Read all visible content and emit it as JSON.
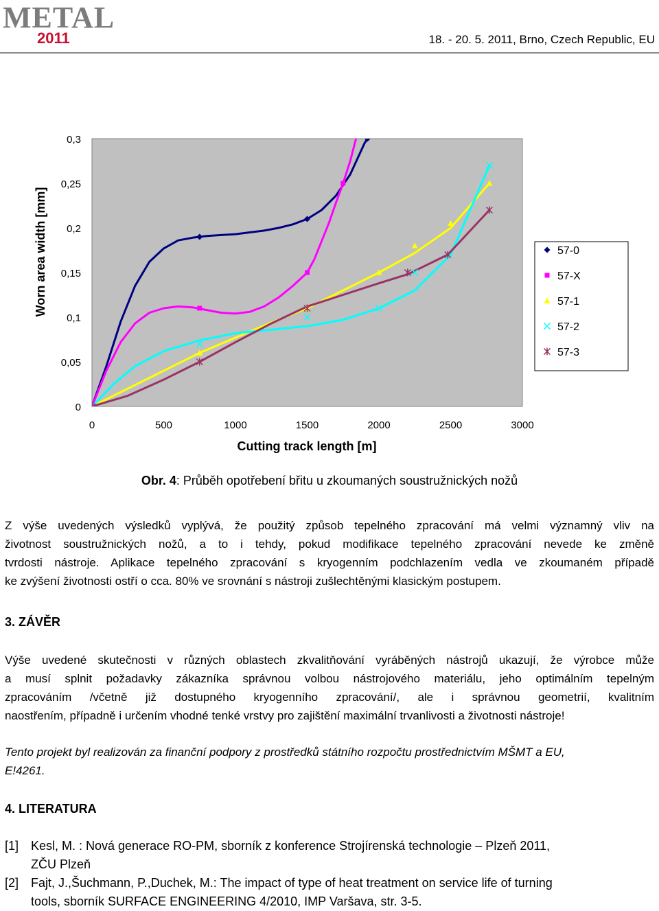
{
  "header": {
    "logo_text": "METAL",
    "logo_year": "2011",
    "date_place": "18. - 20. 5. 2011, Brno, Czech Republic, EU"
  },
  "chart_data": {
    "type": "line",
    "xlabel": "Cutting track length [m]",
    "ylabel": "Worn area width [mm]",
    "xlim": [
      0,
      3000
    ],
    "ylim": [
      0,
      0.3
    ],
    "x_ticks": [
      "0",
      "500",
      "1000",
      "1500",
      "2000",
      "2500",
      "3000"
    ],
    "y_ticks": [
      "0",
      "0,05",
      "0,1",
      "0,15",
      "0,2",
      "0,25",
      "0,3"
    ],
    "legend_position": "right",
    "plot_background": "#c0c0c0",
    "series": [
      {
        "name": "57-0",
        "color": "#000080",
        "marker": "diamond",
        "points": [
          [
            0,
            0
          ],
          [
            750,
            0.19
          ],
          [
            1500,
            0.21
          ],
          [
            1920,
            0.3
          ]
        ],
        "curve": [
          [
            0,
            0
          ],
          [
            100,
            0.045
          ],
          [
            200,
            0.095
          ],
          [
            300,
            0.135
          ],
          [
            400,
            0.162
          ],
          [
            500,
            0.177
          ],
          [
            600,
            0.186
          ],
          [
            700,
            0.189
          ],
          [
            800,
            0.191
          ],
          [
            900,
            0.192
          ],
          [
            1000,
            0.193
          ],
          [
            1100,
            0.195
          ],
          [
            1200,
            0.197
          ],
          [
            1300,
            0.2
          ],
          [
            1400,
            0.204
          ],
          [
            1500,
            0.21
          ],
          [
            1600,
            0.22
          ],
          [
            1700,
            0.236
          ],
          [
            1800,
            0.26
          ],
          [
            1900,
            0.295
          ],
          [
            1920,
            0.3
          ]
        ]
      },
      {
        "name": "57-X",
        "color": "#ff00ff",
        "marker": "square",
        "points": [
          [
            0,
            0
          ],
          [
            750,
            0.11
          ],
          [
            1500,
            0.15
          ],
          [
            1750,
            0.25
          ]
        ],
        "curve": [
          [
            0,
            0
          ],
          [
            100,
            0.04
          ],
          [
            200,
            0.072
          ],
          [
            300,
            0.093
          ],
          [
            400,
            0.105
          ],
          [
            500,
            0.11
          ],
          [
            600,
            0.112
          ],
          [
            700,
            0.111
          ],
          [
            800,
            0.108
          ],
          [
            900,
            0.105
          ],
          [
            1000,
            0.104
          ],
          [
            1100,
            0.106
          ],
          [
            1200,
            0.112
          ],
          [
            1300,
            0.122
          ],
          [
            1400,
            0.135
          ],
          [
            1500,
            0.15
          ],
          [
            1550,
            0.165
          ],
          [
            1600,
            0.185
          ],
          [
            1650,
            0.205
          ],
          [
            1700,
            0.228
          ],
          [
            1750,
            0.25
          ],
          [
            1800,
            0.275
          ],
          [
            1840,
            0.3
          ]
        ]
      },
      {
        "name": "57-1",
        "color": "#ffff00",
        "marker": "triangle",
        "points": [
          [
            0,
            0
          ],
          [
            750,
            0.06
          ],
          [
            1500,
            0.11
          ],
          [
            2000,
            0.15
          ],
          [
            2250,
            0.18
          ],
          [
            2500,
            0.205
          ],
          [
            2770,
            0.25
          ]
        ],
        "curve": [
          [
            0,
            0
          ],
          [
            250,
            0.02
          ],
          [
            500,
            0.04
          ],
          [
            750,
            0.06
          ],
          [
            1000,
            0.077
          ],
          [
            1250,
            0.094
          ],
          [
            1500,
            0.11
          ],
          [
            1750,
            0.13
          ],
          [
            2000,
            0.15
          ],
          [
            2250,
            0.172
          ],
          [
            2500,
            0.2
          ],
          [
            2770,
            0.25
          ]
        ]
      },
      {
        "name": "57-2",
        "color": "#00ffff",
        "marker": "x",
        "points": [
          [
            0,
            0
          ],
          [
            750,
            0.07
          ],
          [
            1500,
            0.1
          ],
          [
            2000,
            0.11
          ],
          [
            2250,
            0.15
          ],
          [
            2770,
            0.27
          ]
        ],
        "curve": [
          [
            0,
            0
          ],
          [
            150,
            0.025
          ],
          [
            300,
            0.045
          ],
          [
            500,
            0.062
          ],
          [
            750,
            0.074
          ],
          [
            1000,
            0.082
          ],
          [
            1250,
            0.086
          ],
          [
            1500,
            0.09
          ],
          [
            1750,
            0.097
          ],
          [
            2000,
            0.11
          ],
          [
            2250,
            0.13
          ],
          [
            2500,
            0.17
          ],
          [
            2770,
            0.27
          ]
        ]
      },
      {
        "name": "57-3",
        "color": "#993366",
        "marker": "star",
        "points": [
          [
            0,
            0
          ],
          [
            750,
            0.05
          ],
          [
            1500,
            0.11
          ],
          [
            2200,
            0.15
          ],
          [
            2480,
            0.17
          ],
          [
            2770,
            0.22
          ]
        ],
        "curve": [
          [
            0,
            0
          ],
          [
            250,
            0.012
          ],
          [
            500,
            0.03
          ],
          [
            750,
            0.05
          ],
          [
            1000,
            0.072
          ],
          [
            1250,
            0.093
          ],
          [
            1500,
            0.112
          ],
          [
            1750,
            0.125
          ],
          [
            2000,
            0.138
          ],
          [
            2200,
            0.148
          ],
          [
            2480,
            0.17
          ],
          [
            2770,
            0.22
          ]
        ]
      }
    ]
  },
  "caption": {
    "label": "Obr. 4",
    "text": ": Průběh opotřebení břitu u zkoumaných soustružnických nožů"
  },
  "body": {
    "para1_lines": [
      "Z výše uvedených výsledků vyplývá, že použitý způsob tepelného zpracování má velmi významný vliv na",
      "životnost soustružnických nožů, a to i tehdy, pokud modifikace tepelného zpracování nevede ke změně",
      "tvrdosti nástroje. Aplikace tepelného zpracování s kryogenním podchlazením vedla ve zkoumaném případě",
      "ke zvýšení životnosti ostří o cca. 80% ve srovnání s nástroji zušlechtěnými klasickým postupem."
    ],
    "section3_heading": "3. ZÁVĚR",
    "para2_lines": [
      "Výše uvedené skutečnosti v různých oblastech zkvalitňování vyráběných nástrojů ukazují, že výrobce může",
      "a musí splnit požadavky zákazníka správnou volbou nástrojového materiálu, jeho optimálním tepelným",
      "zpracováním /včetně již dostupného kryogenního zpracování/, ale i správnou geometrií, kvalitním",
      "naostřením, případně i určením vhodné tenké vrstvy pro zajištění maximální trvanlivosti a životnosti nástroje!"
    ],
    "ack_lines": [
      "Tento projekt byl realizován za finanční podpory z prostředků státního rozpočtu prostřednictvím MŠMT a EU,",
      "E!4261."
    ],
    "section4_heading": "4. LITERATURA",
    "references": [
      {
        "num": "[1]",
        "lines": [
          "Kesl, M. : Nová generace RO-PM, sborník z konference Strojírenská technologie – Plzeň 2011,",
          "ZČU Plzeň"
        ]
      },
      {
        "num": "[2]",
        "lines": [
          "Fajt, J.,Šuchmann, P.,Duchek, M.: The impact of type of heat treatment on service life of turning",
          "tools, sborník SURFACE ENGINEERING 4/2010, IMP Varšava, str. 3-5."
        ]
      }
    ]
  }
}
